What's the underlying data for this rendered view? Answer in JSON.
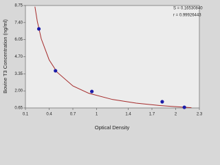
{
  "chart_data": {
    "type": "scatter",
    "x_label": "Optical Density",
    "y_label": "Bovine T3 Concentration (ng/ml)",
    "annotations": [
      "S = 0.16530840",
      "r = 0.99926443"
    ],
    "xlim": [
      0.1,
      2.3
    ],
    "xticks": [
      0.1,
      0.4,
      0.7,
      1.0,
      1.4,
      1.7,
      2.0,
      2.3
    ],
    "ylim": [
      0.65,
      8.75
    ],
    "yticks": [
      0.65,
      {
        "value": 2.0,
        "label": "2.00"
      },
      3.35,
      {
        "value": 4.7,
        "label": "4.70"
      },
      6.05,
      {
        "value": 7.4,
        "label": "7.40"
      },
      8.75
    ],
    "series": [
      {
        "style": "line",
        "color": "#a52a2a",
        "x": [
          0.22,
          0.25,
          0.3,
          0.4,
          0.5,
          0.7,
          0.9,
          1.2,
          1.5,
          1.8,
          2.1,
          2.2
        ],
        "values": [
          8.66,
          7.5,
          6.12,
          4.45,
          3.48,
          2.39,
          1.81,
          1.32,
          1.03,
          0.84,
          0.71,
          0.67
        ]
      },
      {
        "style": "points",
        "color": "#1c1ca8",
        "x": [
          0.27,
          0.48,
          0.94,
          1.83,
          2.11
        ],
        "values": [
          6.9,
          3.59,
          1.95,
          1.14,
          0.7
        ]
      }
    ]
  }
}
